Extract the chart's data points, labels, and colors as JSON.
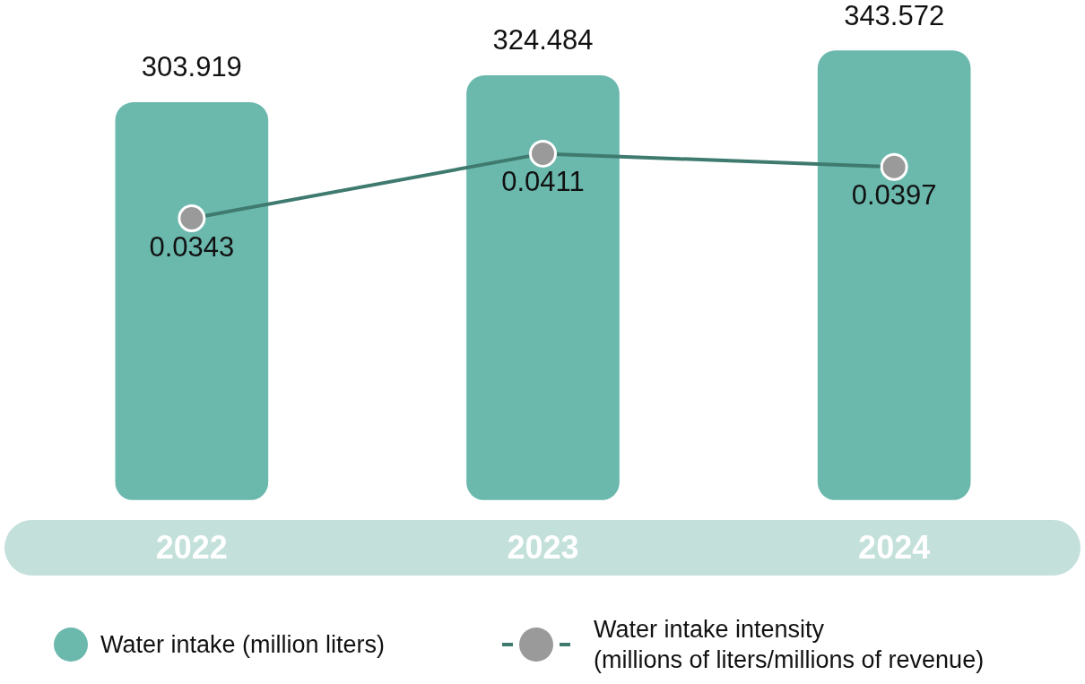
{
  "chart_data": {
    "type": "bar",
    "categories": [
      "2022",
      "2023",
      "2024"
    ],
    "series": [
      {
        "name": "Water intake (million liters)",
        "color": "#6bb8ad",
        "values": [
          303.919,
          324.484,
          343.572
        ]
      },
      {
        "name": "Water intake intensity\n(millions of liters/millions of revenue)",
        "type": "line",
        "axis": "y2",
        "color": "#3f7a6f",
        "values": [
          0.0343,
          0.0411,
          0.0397
        ]
      }
    ],
    "tick_labels": "x",
    "data_labels": true,
    "legend": "bottom",
    "grid": false,
    "marker": "circle"
  }
}
